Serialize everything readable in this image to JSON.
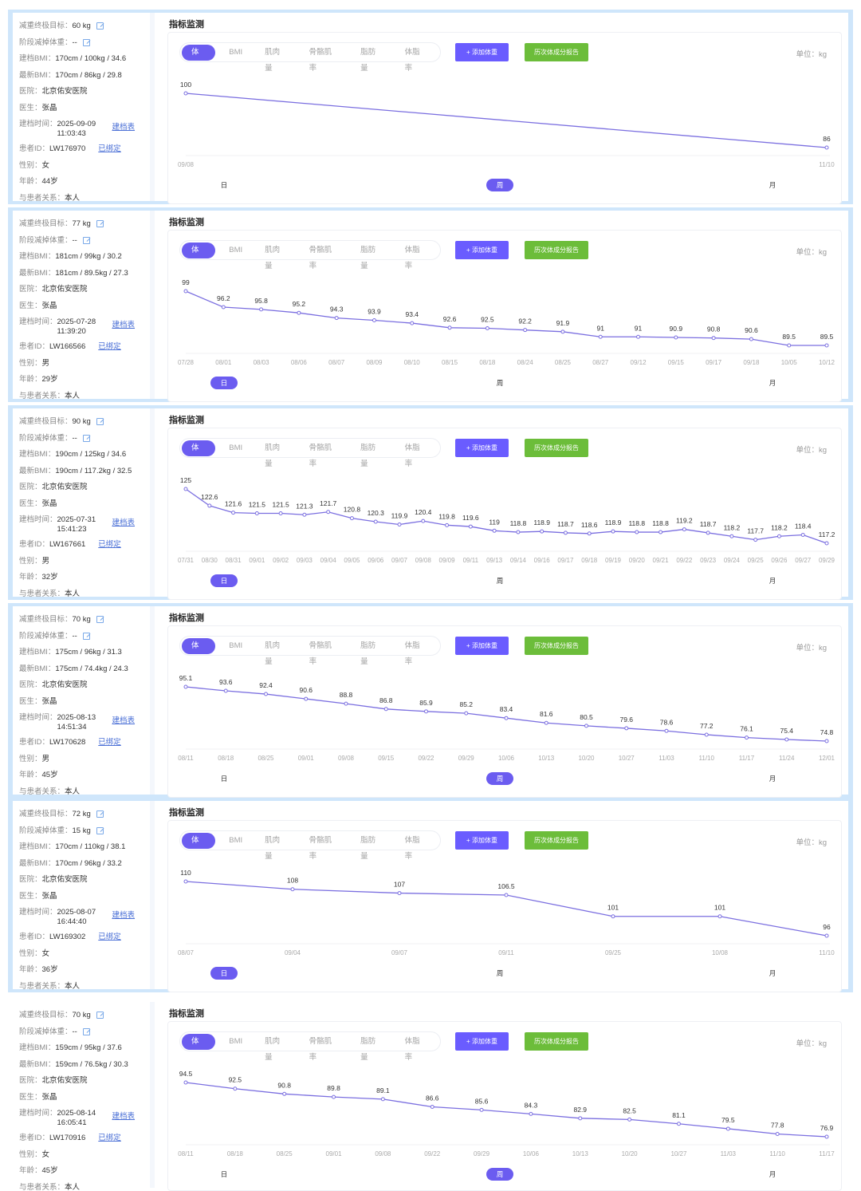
{
  "ui": {
    "section_title": "指标监测",
    "tabs": [
      "体重",
      "BMI",
      "肌肉量",
      "骨骼肌率",
      "脂肪量",
      "体脂率"
    ],
    "add_button": "+ 添加体重",
    "report_button": "历次体成分报告",
    "unit": "单位：kg",
    "periods": [
      "日",
      "周",
      "月"
    ],
    "profile_link": "建档表",
    "bound_link": "已绑定",
    "labels": {
      "goal": "减重终极目标：",
      "stage": "阶段减掉体重：",
      "bmi_initial": "建档BMI：",
      "bmi_latest": "最新BMI：",
      "hospital": "医院：",
      "doctor": "医生：",
      "created": "建档时间：",
      "patient_id": "患者ID：",
      "gender": "性别：",
      "age": "年龄：",
      "relation": "与患者关系："
    },
    "colors": {
      "accent": "#6b5cf0",
      "green": "#6cbd3a",
      "line": "#7b6fe0",
      "border": "#cfe6fb"
    }
  },
  "patients": [
    {
      "goal": "60 kg",
      "stage": "--",
      "bmi_initial": "170cm / 100kg / 34.6",
      "bmi_latest": "170cm / 86kg / 29.8",
      "hospital": "北京佑安医院",
      "doctor": "张晶",
      "created": "2025-09-09 11:03:43",
      "patient_id": "LW176970",
      "gender": "女",
      "age": "44岁",
      "relation": "本人",
      "active_tab": 0,
      "active_period": 1
    },
    {
      "goal": "77 kg",
      "stage": "--",
      "bmi_initial": "181cm / 99kg / 30.2",
      "bmi_latest": "181cm / 89.5kg / 27.3",
      "hospital": "北京佑安医院",
      "doctor": "张晶",
      "created": "2025-07-28 11:39:20",
      "patient_id": "LW166566",
      "gender": "男",
      "age": "29岁",
      "relation": "本人",
      "active_tab": 0,
      "active_period": 0
    },
    {
      "goal": "90 kg",
      "stage": "--",
      "bmi_initial": "190cm / 125kg / 34.6",
      "bmi_latest": "190cm / 117.2kg / 32.5",
      "hospital": "北京佑安医院",
      "doctor": "张晶",
      "created": "2025-07-31 15:41:23",
      "patient_id": "LW167661",
      "gender": "男",
      "age": "32岁",
      "relation": "本人",
      "active_tab": 0,
      "active_period": 0
    },
    {
      "goal": "70 kg",
      "stage": "--",
      "bmi_initial": "175cm / 96kg / 31.3",
      "bmi_latest": "175cm / 74.4kg / 24.3",
      "hospital": "北京佑安医院",
      "doctor": "张晶",
      "created": "2025-08-13 14:51:34",
      "patient_id": "LW170628",
      "gender": "男",
      "age": "45岁",
      "relation": "本人",
      "active_tab": 0,
      "active_period": 1
    },
    {
      "goal": "72 kg",
      "stage": "15 kg",
      "bmi_initial": "170cm / 110kg / 38.1",
      "bmi_latest": "170cm / 96kg / 33.2",
      "hospital": "北京佑安医院",
      "doctor": "张晶",
      "created": "2025-08-07 16:44:40",
      "patient_id": "LW169302",
      "gender": "女",
      "age": "36岁",
      "relation": "本人",
      "active_tab": 0,
      "active_period": 0
    },
    {
      "goal": "70 kg",
      "stage": "--",
      "bmi_initial": "159cm / 95kg / 37.6",
      "bmi_latest": "159cm / 76.5kg / 30.3",
      "hospital": "北京佑安医院",
      "doctor": "张晶",
      "created": "2025-08-14 16:05:41",
      "patient_id": "LW170916",
      "gender": "女",
      "age": "45岁",
      "relation": "本人",
      "active_tab": 0,
      "active_period": 1
    }
  ],
  "chart_data": [
    {
      "type": "line",
      "title": "体重",
      "ylabel": "kg",
      "categories": [
        "09/08",
        "11/10"
      ],
      "values": [
        100,
        86
      ]
    },
    {
      "type": "line",
      "title": "体重",
      "ylabel": "kg",
      "categories": [
        "07/28",
        "08/01",
        "08/03",
        "08/06",
        "08/07",
        "08/09",
        "08/10",
        "08/15",
        "08/18",
        "08/24",
        "08/25",
        "08/27",
        "09/12",
        "09/15",
        "09/17",
        "09/18",
        "10/05",
        "10/12"
      ],
      "values": [
        99,
        96.2,
        95.8,
        95.2,
        94.3,
        93.9,
        93.4,
        92.6,
        92.5,
        92.2,
        91.9,
        91,
        91,
        90.9,
        90.8,
        90.6,
        89.5,
        89.5
      ]
    },
    {
      "type": "line",
      "title": "体重",
      "ylabel": "kg",
      "categories": [
        "07/31",
        "08/30",
        "08/31",
        "09/01",
        "09/02",
        "09/03",
        "09/04",
        "09/05",
        "09/06",
        "09/07",
        "09/08",
        "09/09",
        "09/11",
        "09/13",
        "09/14",
        "09/16",
        "09/17",
        "09/18",
        "09/19",
        "09/20",
        "09/21",
        "09/22",
        "09/23",
        "09/24",
        "09/25",
        "09/26",
        "09/27",
        "09/29"
      ],
      "values": [
        125,
        122.6,
        121.6,
        121.5,
        121.5,
        121.3,
        121.7,
        120.8,
        120.3,
        119.9,
        120.4,
        119.8,
        119.6,
        119,
        118.8,
        118.9,
        118.7,
        118.6,
        118.9,
        118.8,
        118.8,
        119.2,
        118.7,
        118.2,
        117.7,
        118.2,
        118.4,
        117.2
      ]
    },
    {
      "type": "line",
      "title": "体重",
      "ylabel": "kg",
      "categories": [
        "08/11",
        "08/18",
        "08/25",
        "09/01",
        "09/08",
        "09/15",
        "09/22",
        "09/29",
        "10/06",
        "10/13",
        "10/20",
        "10/27",
        "11/03",
        "11/10",
        "11/17",
        "11/24",
        "12/01"
      ],
      "values": [
        95.1,
        93.6,
        92.4,
        90.6,
        88.8,
        86.8,
        85.9,
        85.2,
        83.4,
        81.6,
        80.5,
        79.6,
        78.6,
        77.2,
        76.1,
        75.4,
        74.8
      ]
    },
    {
      "type": "line",
      "title": "体重",
      "ylabel": "kg",
      "categories": [
        "08/07",
        "09/04",
        "09/07",
        "09/11",
        "09/25",
        "10/08",
        "11/10"
      ],
      "values": [
        110,
        108,
        107,
        106.5,
        101,
        101,
        96
      ]
    },
    {
      "type": "line",
      "title": "体重",
      "ylabel": "kg",
      "categories": [
        "08/11",
        "08/18",
        "08/25",
        "09/01",
        "09/08",
        "09/22",
        "09/29",
        "10/06",
        "10/13",
        "10/20",
        "10/27",
        "11/03",
        "11/10",
        "11/17"
      ],
      "values": [
        94.5,
        92.5,
        90.8,
        89.8,
        89.1,
        86.6,
        85.6,
        84.3,
        82.9,
        82.5,
        81.1,
        79.5,
        77.8,
        76.9
      ]
    }
  ]
}
